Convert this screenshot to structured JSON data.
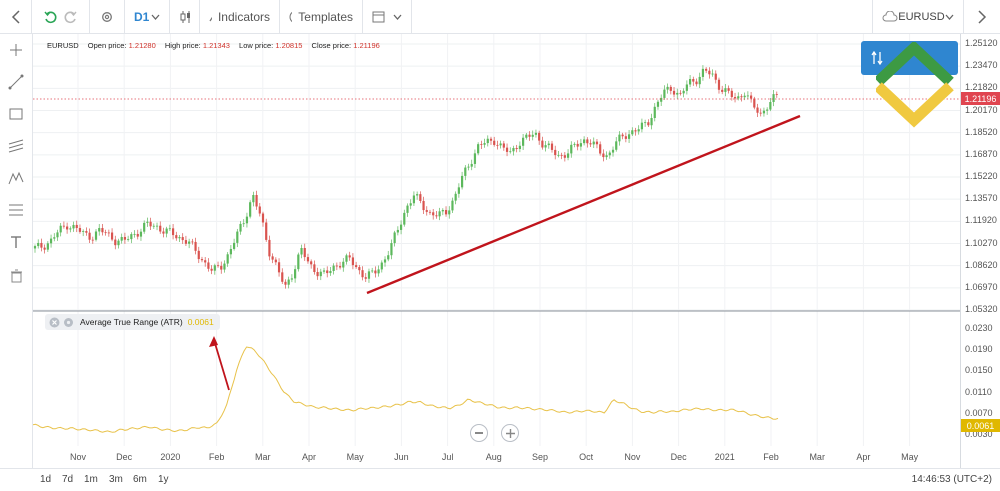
{
  "toolbar": {
    "timeframe": "D1",
    "indicators_label": "Indicators",
    "templates_label": "Templates",
    "symbol": "EURUSD"
  },
  "ohlc": {
    "symbol": "EURUSD",
    "open_label": "Open price:",
    "open": "1.21280",
    "high_label": "High price:",
    "high": "1.21343",
    "low_label": "Low price:",
    "low": "1.20815",
    "close_label": "Close price:",
    "close": "1.21196"
  },
  "price_axis": [
    "1.25120",
    "1.23470",
    "1.21820",
    "1.20170",
    "1.18520",
    "1.16870",
    "1.15220",
    "1.13570",
    "1.11920",
    "1.10270",
    "1.08620",
    "1.06970",
    "1.05320"
  ],
  "current_price": "1.21196",
  "atr": {
    "label": "Average True Range (ATR)",
    "value": "0.0061",
    "axis": [
      "0.0230",
      "0.0190",
      "0.0150",
      "0.0110",
      "0.0070",
      "0.0030"
    ]
  },
  "x_axis": [
    "Nov",
    "Dec",
    "2020",
    "Feb",
    "Mar",
    "Apr",
    "May",
    "Jun",
    "Jul",
    "Aug",
    "Sep",
    "Oct",
    "Nov",
    "Dec",
    "2021",
    "Feb",
    "Mar",
    "Apr",
    "May"
  ],
  "timeframes": [
    "1d",
    "7d",
    "1m",
    "3m",
    "6m",
    "1y"
  ],
  "clock": "14:46:53 (UTC+2)",
  "colors": {
    "bull": "#5cb85c",
    "bear": "#d9534f",
    "atr": "#e8c24a",
    "trendline": "#c0141c",
    "price_tag": "#e04550",
    "atr_tag": "#e0b800",
    "accent": "#2f86d0"
  },
  "chart_data": {
    "type": "candlestick",
    "symbol": "EURUSD",
    "price_ylim": [
      1.0532,
      1.2512
    ],
    "close_series": [
      1.099,
      1.101,
      1.105,
      1.112,
      1.117,
      1.114,
      1.11,
      1.108,
      1.112,
      1.11,
      1.105,
      1.104,
      1.109,
      1.112,
      1.117,
      1.116,
      1.112,
      1.11,
      1.107,
      1.104,
      1.096,
      1.089,
      1.082,
      1.085,
      1.095,
      1.108,
      1.121,
      1.139,
      1.122,
      1.098,
      1.085,
      1.069,
      1.082,
      1.098,
      1.087,
      1.082,
      1.079,
      1.085,
      1.089,
      1.091,
      1.084,
      1.078,
      1.08,
      1.088,
      1.098,
      1.113,
      1.129,
      1.138,
      1.132,
      1.125,
      1.123,
      1.127,
      1.136,
      1.152,
      1.164,
      1.175,
      1.178,
      1.18,
      1.173,
      1.17,
      1.178,
      1.181,
      1.185,
      1.177,
      1.172,
      1.168,
      1.17,
      1.175,
      1.18,
      1.178,
      1.171,
      1.168,
      1.177,
      1.183,
      1.186,
      1.188,
      1.193,
      1.205,
      1.215,
      1.219,
      1.212,
      1.222,
      1.225,
      1.231,
      1.228,
      1.219,
      1.214,
      1.21,
      1.216,
      1.205,
      1.199,
      1.207,
      1.212
    ],
    "atr_ylim": [
      0.001,
      0.025
    ],
    "atr_series": [
      0.005,
      0.0046,
      0.0044,
      0.0043,
      0.0043,
      0.0041,
      0.004,
      0.0038,
      0.0036,
      0.004,
      0.0042,
      0.0044,
      0.0046,
      0.0042,
      0.004,
      0.0038,
      0.0041,
      0.0045,
      0.0044,
      0.0052,
      0.0085,
      0.015,
      0.0198,
      0.0188,
      0.0165,
      0.0138,
      0.011,
      0.0093,
      0.0088,
      0.0083,
      0.0082,
      0.008,
      0.0078,
      0.0077,
      0.008,
      0.0081,
      0.0083,
      0.0085,
      0.0088,
      0.0093,
      0.0092,
      0.0086,
      0.0083,
      0.0081,
      0.0086,
      0.0097,
      0.0092,
      0.0088,
      0.0083,
      0.0081,
      0.0082,
      0.0081,
      0.0079,
      0.0078,
      0.0076,
      0.0073,
      0.0074,
      0.0076,
      0.0075,
      0.0072,
      0.0096,
      0.009,
      0.008,
      0.0074,
      0.0073,
      0.0075,
      0.0074,
      0.0077,
      0.0079,
      0.008,
      0.0078,
      0.0077,
      0.0078,
      0.0076,
      0.007,
      0.0066,
      0.0063,
      0.0061
    ]
  }
}
